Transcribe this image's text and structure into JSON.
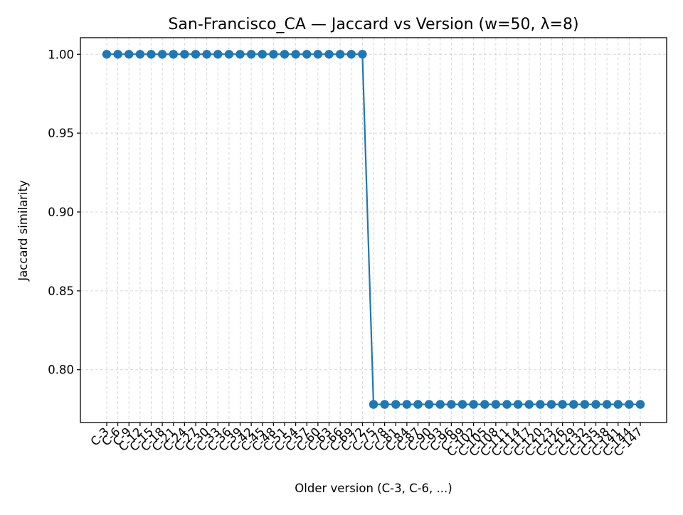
{
  "chart_data": {
    "type": "line",
    "title": "San-Francisco_CA — Jaccard vs Version (w=50, λ=8)",
    "xlabel": "Older version (C-3, C-6, ...)",
    "ylabel": "Jaccard similarity",
    "ylim": [
      0.7665,
      1.0105
    ],
    "yticks": [
      "0.80",
      "0.85",
      "0.90",
      "0.95",
      "1.00"
    ],
    "grid": true,
    "categories": [
      "C-3",
      "C-6",
      "C-9",
      "C-12",
      "C-15",
      "C-18",
      "C-21",
      "C-24",
      "C-27",
      "C-30",
      "C-33",
      "C-36",
      "C-39",
      "C-42",
      "C-45",
      "C-48",
      "C-51",
      "C-54",
      "C-57",
      "C-60",
      "C-63",
      "C-66",
      "C-69",
      "C-72",
      "C-75",
      "C-78",
      "C-81",
      "C-84",
      "C-87",
      "C-90",
      "C-93",
      "C-96",
      "C-99",
      "C-102",
      "C-105",
      "C-108",
      "C-111",
      "C-114",
      "C-117",
      "C-120",
      "C-123",
      "C-126",
      "C-129",
      "C-132",
      "C-135",
      "C-138",
      "C-141",
      "C-144",
      "C-147"
    ],
    "series": [
      {
        "color": "#1f77b4",
        "values": [
          1.0,
          1.0,
          1.0,
          1.0,
          1.0,
          1.0,
          1.0,
          1.0,
          1.0,
          1.0,
          1.0,
          1.0,
          1.0,
          1.0,
          1.0,
          1.0,
          1.0,
          1.0,
          1.0,
          1.0,
          1.0,
          1.0,
          1.0,
          1.0,
          0.778,
          0.778,
          0.778,
          0.778,
          0.778,
          0.778,
          0.778,
          0.778,
          0.778,
          0.778,
          0.778,
          0.778,
          0.778,
          0.778,
          0.778,
          0.778,
          0.778,
          0.778,
          0.778,
          0.778,
          0.778,
          0.778,
          0.778,
          0.778,
          0.778
        ]
      }
    ]
  }
}
